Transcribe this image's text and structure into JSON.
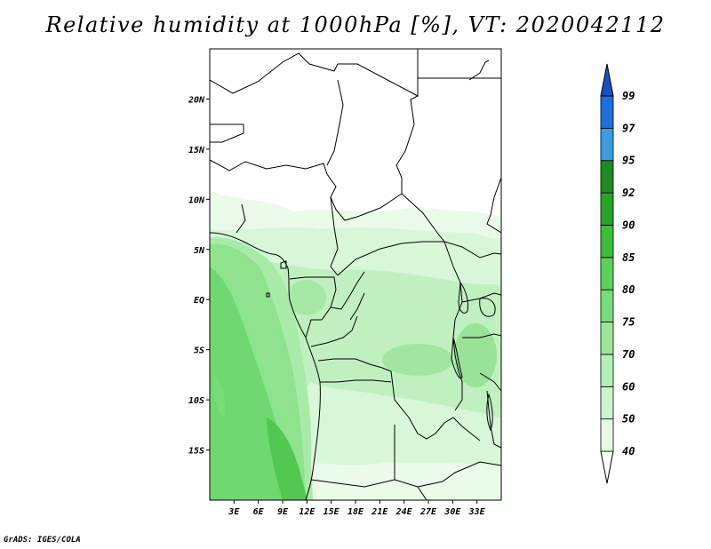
{
  "title": "Relative humidity at 1000hPa [%], VT: 2020042112",
  "credit": "GrADS: IGES/COLA",
  "map": {
    "lon_range": [
      0,
      36
    ],
    "lat_range": [
      -20,
      25
    ],
    "x_ticks": [
      "3E",
      "6E",
      "9E",
      "12E",
      "15E",
      "18E",
      "21E",
      "24E",
      "27E",
      "30E",
      "33E"
    ],
    "y_ticks": [
      "20N",
      "15N",
      "10N",
      "5N",
      "EQ",
      "5S",
      "10S",
      "15S"
    ]
  },
  "colorbar": {
    "levels": [
      "40",
      "50",
      "60",
      "70",
      "75",
      "80",
      "85",
      "90",
      "92",
      "95",
      "97",
      "99"
    ],
    "colors": [
      "#ffffff",
      "#e6fae6",
      "#cdf5cd",
      "#b4f0b4",
      "#9be69b",
      "#78dc78",
      "#5ad25a",
      "#3cbe3c",
      "#28a528",
      "#1e8c1e",
      "#3c9ce6",
      "#1e6edc",
      "#1450c8"
    ]
  }
}
